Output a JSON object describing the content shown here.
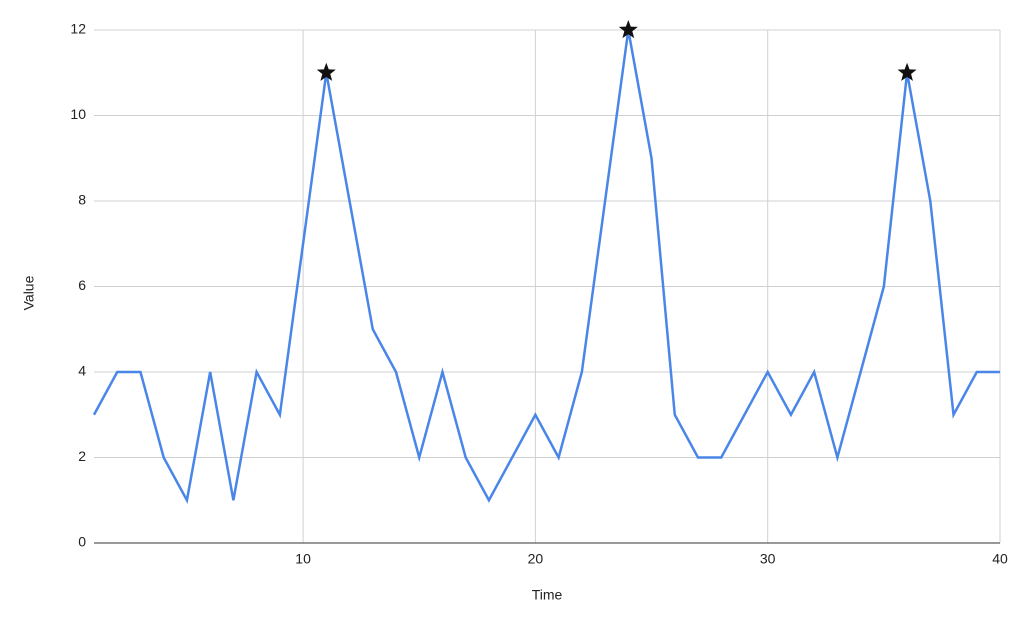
{
  "chart_data": {
    "type": "line",
    "x_label": "Time",
    "y_label": "Value",
    "x": [
      1,
      2,
      3,
      4,
      5,
      6,
      7,
      8,
      9,
      10,
      11,
      12,
      13,
      14,
      15,
      16,
      17,
      18,
      19,
      20,
      21,
      22,
      23,
      24,
      25,
      26,
      27,
      28,
      29,
      30,
      31,
      32,
      33,
      34,
      35,
      36,
      37,
      38,
      39,
      40
    ],
    "values": [
      3,
      4,
      4,
      2,
      1,
      4,
      1,
      4,
      3,
      7,
      11,
      8,
      5,
      4,
      2,
      4,
      2,
      1,
      2,
      3,
      2,
      4,
      8,
      12,
      9,
      3,
      2,
      2,
      3,
      4,
      3,
      4,
      2,
      4,
      6,
      11,
      8,
      3,
      4,
      4
    ],
    "color": "#4a86e8",
    "peaks": {
      "x": [
        11,
        24,
        36
      ],
      "values": [
        11,
        12,
        11
      ],
      "color": "#111111"
    },
    "xlim": [
      1,
      40
    ],
    "xticks": [
      10,
      20,
      30,
      40
    ],
    "ylim": [
      0,
      12
    ],
    "yticks": [
      0,
      2,
      4,
      6,
      8,
      10,
      12
    ],
    "grid": true
  }
}
